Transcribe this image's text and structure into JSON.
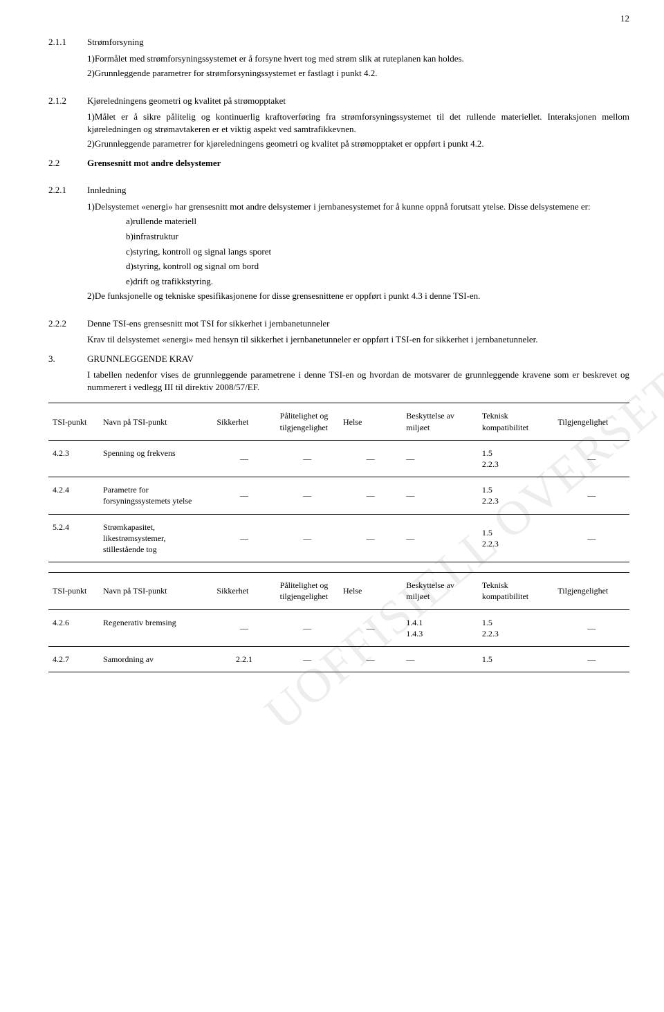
{
  "page_number": "12",
  "watermark": "UOFFISIELL OVERSETTELSE",
  "s211": {
    "num": "2.1.1",
    "title": "Strømforsyning",
    "p1": "1)Formålet med strømforsyningssystemet er å forsyne hvert tog med strøm slik at ruteplanen kan holdes.",
    "p2": "2)Grunnleggende parametrer for strømforsyningssystemet er fastlagt i punkt 4.2."
  },
  "s212": {
    "num": "2.1.2",
    "title": "Kjøreledningens geometri og kvalitet på strømopptaket",
    "p1": "1)Målet er å sikre pålitelig og kontinuerlig kraftoverføring fra strømforsyningssystemet til det rullende materiellet. Interaksjonen mellom kjøreledningen og strømavtakeren er et viktig aspekt ved samtrafikkevnen.",
    "p2": "2)Grunnleggende parametrer for kjøreledningens geometri og kvalitet på strømopptaket er oppført i punkt 4.2."
  },
  "s22": {
    "num": "2.2",
    "title": "Grensesnitt mot andre delsystemer"
  },
  "s221": {
    "num": "2.2.1",
    "title": "Innledning",
    "p1": "1)Delsystemet «energi» har grensesnitt mot andre delsystemer i jernbanesystemet for å kunne oppnå forutsatt ytelse. Disse delsystemene er:",
    "a": "a)rullende materiell",
    "b": "b)infrastruktur",
    "c": "c)styring, kontroll og signal langs sporet",
    "d": "d)styring, kontroll og signal om bord",
    "e": "e)drift og trafikkstyring.",
    "p2": "2)De funksjonelle og tekniske spesifikasjonene for disse grensesnittene er oppført i punkt 4.3 i denne TSI-en."
  },
  "s222": {
    "num": "2.2.2",
    "title": "Denne TSI-ens grensesnitt mot TSI for sikkerhet i jernbanetunneler",
    "p1": "Krav til delsystemet «energi» med hensyn til sikkerhet i jernbanetunneler er oppført i TSI-en for sikkerhet i jernbanetunneler."
  },
  "s3": {
    "num": "3.",
    "title": "GRUNNLEGGENDE KRAV",
    "intro": "I tabellen nedenfor vises de grunnleggende parametrene i denne TSI-en og hvordan de motsvarer de grunnleggende kravene som er beskrevet og nummerert i vedlegg III til direktiv 2008/57/EF."
  },
  "table": {
    "headers": {
      "id": "TSI-punkt",
      "name": "Navn på TSI-punkt",
      "safety": "Sikkerhet",
      "reliability": "Pålitelighet og tilgjengelighet",
      "health": "Helse",
      "env": "Beskyttelse av miljøet",
      "tech": "Teknisk kompatibilitet",
      "access": "Tilgjengelighet"
    },
    "dash": "—",
    "rows1": [
      {
        "id": "4.2.3",
        "name": "Spenning og frekvens",
        "s": "—",
        "p": "—",
        "h": "—",
        "b": "—",
        "t": "1.5\n2.2.3",
        "a": "—"
      },
      {
        "id": "4.2.4",
        "name": "Parametre for forsyningssystemets ytelse",
        "s": "—",
        "p": "—",
        "h": "—",
        "b": "—",
        "t": "1.5\n2.2.3",
        "a": "—"
      },
      {
        "id": "5.2.4",
        "name": "Strømkapasitet, likestrømsystemer, stillestående tog",
        "s": "—",
        "p": "—",
        "h": "—",
        "b": "—",
        "t": "1.5\n2.2.3",
        "a": "—"
      }
    ],
    "rows2": [
      {
        "id": "4.2.6",
        "name": "Regenerativ bremsing",
        "s": "—",
        "p": "—",
        "h": "—",
        "b": "1.4.1\n1.4.3",
        "t": "1.5\n2.2.3",
        "a": "—"
      },
      {
        "id": "4.2.7",
        "name": "Samordning av",
        "s": "2.2.1",
        "p": "—",
        "h": "—",
        "b": "—",
        "t": "1.5",
        "a": "—"
      }
    ]
  }
}
